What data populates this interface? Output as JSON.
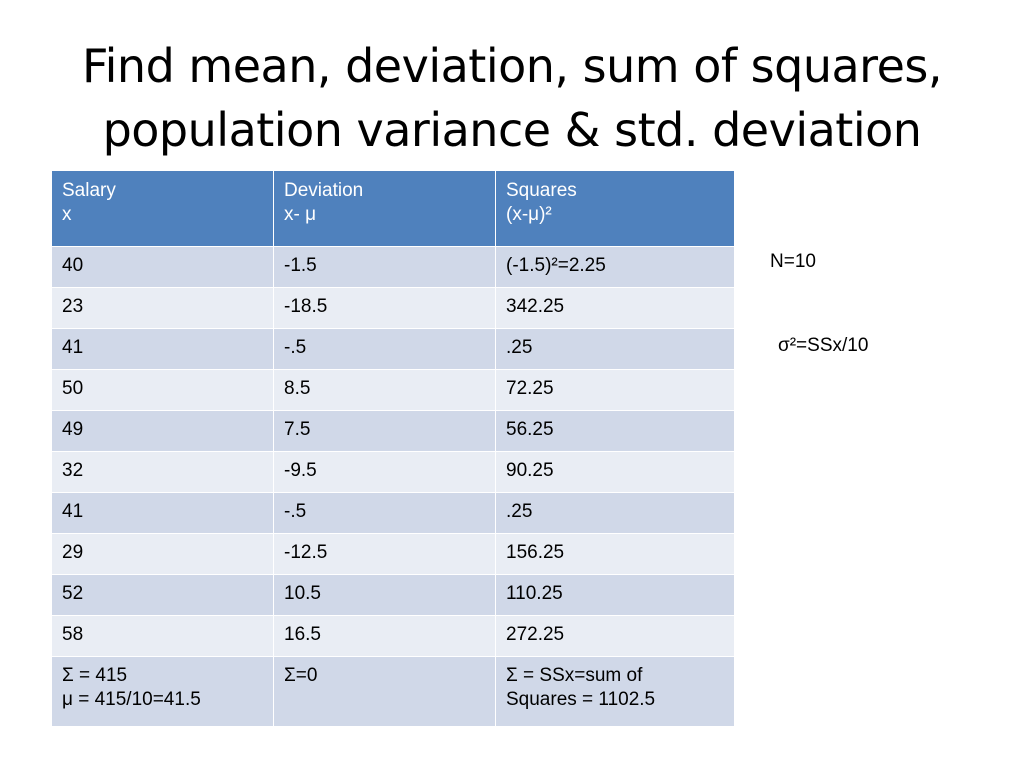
{
  "title": {
    "line1": "Find mean, deviation, sum of squares,",
    "line2": "population variance & std. deviation"
  },
  "table": {
    "headers": [
      {
        "line1": "Salary",
        "line2": "x"
      },
      {
        "line1": "Deviation",
        "line2": "x- μ"
      },
      {
        "line1": "Squares",
        "line2": "(x-μ)²"
      }
    ],
    "rows": [
      [
        "40",
        "-1.5",
        "(-1.5)²=2.25"
      ],
      [
        "23",
        "-18.5",
        "342.25"
      ],
      [
        "41",
        "-.5",
        ".25"
      ],
      [
        "50",
        "8.5",
        "72.25"
      ],
      [
        "49",
        "7.5",
        "56.25"
      ],
      [
        "32",
        "-9.5",
        "90.25"
      ],
      [
        "41",
        "-.5",
        ".25"
      ],
      [
        "29",
        "-12.5",
        "156.25"
      ],
      [
        "52",
        "10.5",
        "110.25"
      ],
      [
        "58",
        "16.5",
        "272.25"
      ]
    ],
    "totals": {
      "salary": {
        "line1": "Σ = 415",
        "line2": "μ = 415/10=41.5"
      },
      "deviation": {
        "line1": "Σ=0"
      },
      "squares": {
        "line1": "Σ = SSx=sum of",
        "line2": "Squares = 1102.5"
      }
    }
  },
  "notes": {
    "n": "N=10",
    "variance": "σ²=SSx/10"
  },
  "colors": {
    "header_bg": "#4f81bd",
    "row_odd": "#d0d8e8",
    "row_even": "#e9edf4"
  }
}
